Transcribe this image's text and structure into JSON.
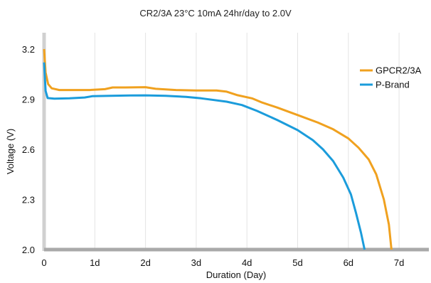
{
  "chart_data": {
    "type": "line",
    "title": "CR2/3A  23°C 10mA  24hr/day to 2.0V",
    "xlabel": "Duration (Day)",
    "ylabel": "Voltage (V)",
    "xlim": [
      0,
      7.5
    ],
    "ylim": [
      2.0,
      3.3
    ],
    "x_ticks": [
      {
        "value": 0,
        "label": "0"
      },
      {
        "value": 1,
        "label": "1d"
      },
      {
        "value": 2,
        "label": "2d"
      },
      {
        "value": 3,
        "label": "3d"
      },
      {
        "value": 4,
        "label": "4d"
      },
      {
        "value": 5,
        "label": "5d"
      },
      {
        "value": 6,
        "label": "6d"
      },
      {
        "value": 7,
        "label": "7d"
      }
    ],
    "y_ticks": [
      {
        "value": 2.0,
        "label": "2.0"
      },
      {
        "value": 2.3,
        "label": "2.3"
      },
      {
        "value": 2.6,
        "label": "2.6"
      },
      {
        "value": 2.9,
        "label": "2.9"
      },
      {
        "value": 3.2,
        "label": "3.2"
      }
    ],
    "grid": "vertical",
    "legend_position": "top-right",
    "series": [
      {
        "name": "GPCR2/3A",
        "color": "#F0A11F",
        "points": [
          [
            0,
            3.2
          ],
          [
            0.03,
            3.06
          ],
          [
            0.08,
            2.99
          ],
          [
            0.15,
            2.965
          ],
          [
            0.3,
            2.955
          ],
          [
            0.6,
            2.955
          ],
          [
            0.9,
            2.955
          ],
          [
            1.2,
            2.96
          ],
          [
            1.35,
            2.97
          ],
          [
            1.6,
            2.97
          ],
          [
            2.0,
            2.972
          ],
          [
            2.2,
            2.962
          ],
          [
            2.6,
            2.955
          ],
          [
            3.0,
            2.952
          ],
          [
            3.4,
            2.952
          ],
          [
            3.6,
            2.945
          ],
          [
            3.8,
            2.925
          ],
          [
            4.1,
            2.905
          ],
          [
            4.3,
            2.88
          ],
          [
            4.6,
            2.85
          ],
          [
            5.0,
            2.805
          ],
          [
            5.4,
            2.76
          ],
          [
            5.7,
            2.72
          ],
          [
            6.0,
            2.665
          ],
          [
            6.2,
            2.61
          ],
          [
            6.4,
            2.54
          ],
          [
            6.55,
            2.45
          ],
          [
            6.7,
            2.3
          ],
          [
            6.8,
            2.15
          ],
          [
            6.85,
            2.0
          ]
        ]
      },
      {
        "name": "P-Brand",
        "color": "#1B9CDB",
        "points": [
          [
            0,
            3.12
          ],
          [
            0.03,
            2.95
          ],
          [
            0.07,
            2.907
          ],
          [
            0.2,
            2.903
          ],
          [
            0.5,
            2.905
          ],
          [
            0.8,
            2.91
          ],
          [
            0.95,
            2.918
          ],
          [
            1.3,
            2.92
          ],
          [
            1.7,
            2.922
          ],
          [
            2.0,
            2.923
          ],
          [
            2.4,
            2.92
          ],
          [
            2.8,
            2.914
          ],
          [
            3.1,
            2.905
          ],
          [
            3.6,
            2.885
          ],
          [
            3.9,
            2.865
          ],
          [
            4.2,
            2.83
          ],
          [
            4.6,
            2.775
          ],
          [
            5.0,
            2.715
          ],
          [
            5.3,
            2.655
          ],
          [
            5.5,
            2.6
          ],
          [
            5.7,
            2.53
          ],
          [
            5.9,
            2.43
          ],
          [
            6.05,
            2.33
          ],
          [
            6.15,
            2.22
          ],
          [
            6.25,
            2.1
          ],
          [
            6.32,
            2.0
          ]
        ]
      }
    ]
  }
}
